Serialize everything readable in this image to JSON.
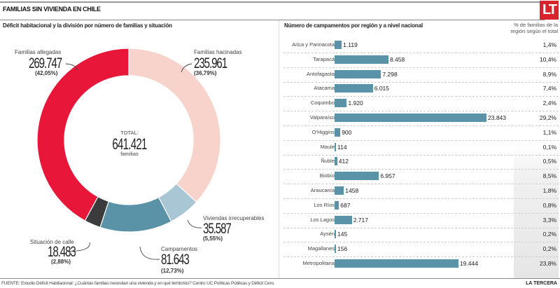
{
  "header": {
    "title": "FAMILIAS SIN VIVIENDA EN CHILE",
    "logo": "LT"
  },
  "colors": {
    "allegadas": "#e8173a",
    "hacinadas": "#f7d3cc",
    "irrecuperables": "#a9c6d4",
    "campamentos": "#5a93a8",
    "calle": "#3b3b3d",
    "bar": "#5a93a8",
    "logo": "#d9232d"
  },
  "donut": {
    "subtitle": "Déficit habitacional y la división por número de familias y situación",
    "total_label": "TOTAL:",
    "total_value": "641.421",
    "total_unit": "familias"
  },
  "bars": {
    "subtitle": "Número de campamentos por región y a nivel nacional",
    "pct_header": "% de familias de la región según el total"
  },
  "chart_data": [
    {
      "type": "pie",
      "title": "Déficit habitacional y la división por número de familias y situación",
      "donut": true,
      "total": 641421,
      "center_text": "TOTAL: 641.421 familias",
      "slices": [
        {
          "key": "hacinadas",
          "label": "Familias hacinadas",
          "value": 235961,
          "value_text": "235.961",
          "percent_text": "(36,79%)",
          "percent": 36.79
        },
        {
          "key": "irrecuperables",
          "label": "Viviendas irrecuperables",
          "value": 35587,
          "value_text": "35.587",
          "percent_text": "(5,55%)",
          "percent": 5.55
        },
        {
          "key": "campamentos",
          "label": "Campamentos",
          "value": 81643,
          "value_text": "81.643",
          "percent_text": "(12,73%)",
          "percent": 12.73
        },
        {
          "key": "calle",
          "label": "Situación de calle",
          "value": 18483,
          "value_text": "18.483",
          "percent_text": "(2,88%)",
          "percent": 2.88
        },
        {
          "key": "allegadas",
          "label": "Familias allegadas",
          "value": 269747,
          "value_text": "269.747",
          "percent_text": "(42,05%)",
          "percent": 42.05
        }
      ]
    },
    {
      "type": "bar",
      "orientation": "horizontal",
      "title": "Número de campamentos por región y a nivel nacional",
      "xlim": [
        0,
        23843
      ],
      "categories": [
        "Arica y Parinacota",
        "Tarapacá",
        "Antofagasta",
        "Atacama",
        "Coquimbo",
        "Valparaíso",
        "O'Higgins",
        "Maule",
        "Ñuble",
        "Biobío",
        "Araucanía",
        "Los Ríos",
        "Los Lagos",
        "Aysén",
        "Magallanes",
        "Metropolitana"
      ],
      "values": [
        1119,
        8458,
        7298,
        6015,
        1920,
        23843,
        900,
        114,
        412,
        6957,
        1458,
        687,
        2717,
        145,
        156,
        19444
      ],
      "value_labels": [
        "1.119",
        "8.458",
        "7.298",
        "6.015",
        "1.920",
        "23.843",
        "900",
        "114",
        "412",
        "6.957",
        "1458",
        "687",
        "2.717",
        "145",
        "156",
        "19.444"
      ],
      "secondary_column": {
        "header": "% de familias de la región según el total",
        "values": [
          "1,4%",
          "10,4%",
          "8,9%",
          "7,4%",
          "2,4%",
          "29,2%",
          "1,1%",
          "0,1%",
          "0,5%",
          "8,5%",
          "1,8%",
          "0,8%",
          "3,3%",
          "0,2%",
          "0,2%",
          "23,8%"
        ]
      }
    }
  ],
  "footer": {
    "source": "FUENTE: Estudio Déficit Habitacional: ¿Cuántas familias necesitan una vivienda y en qué territorios? Centro UC Políticas Públicas y Déficit Cero.",
    "brand": "LA TERCERA"
  }
}
